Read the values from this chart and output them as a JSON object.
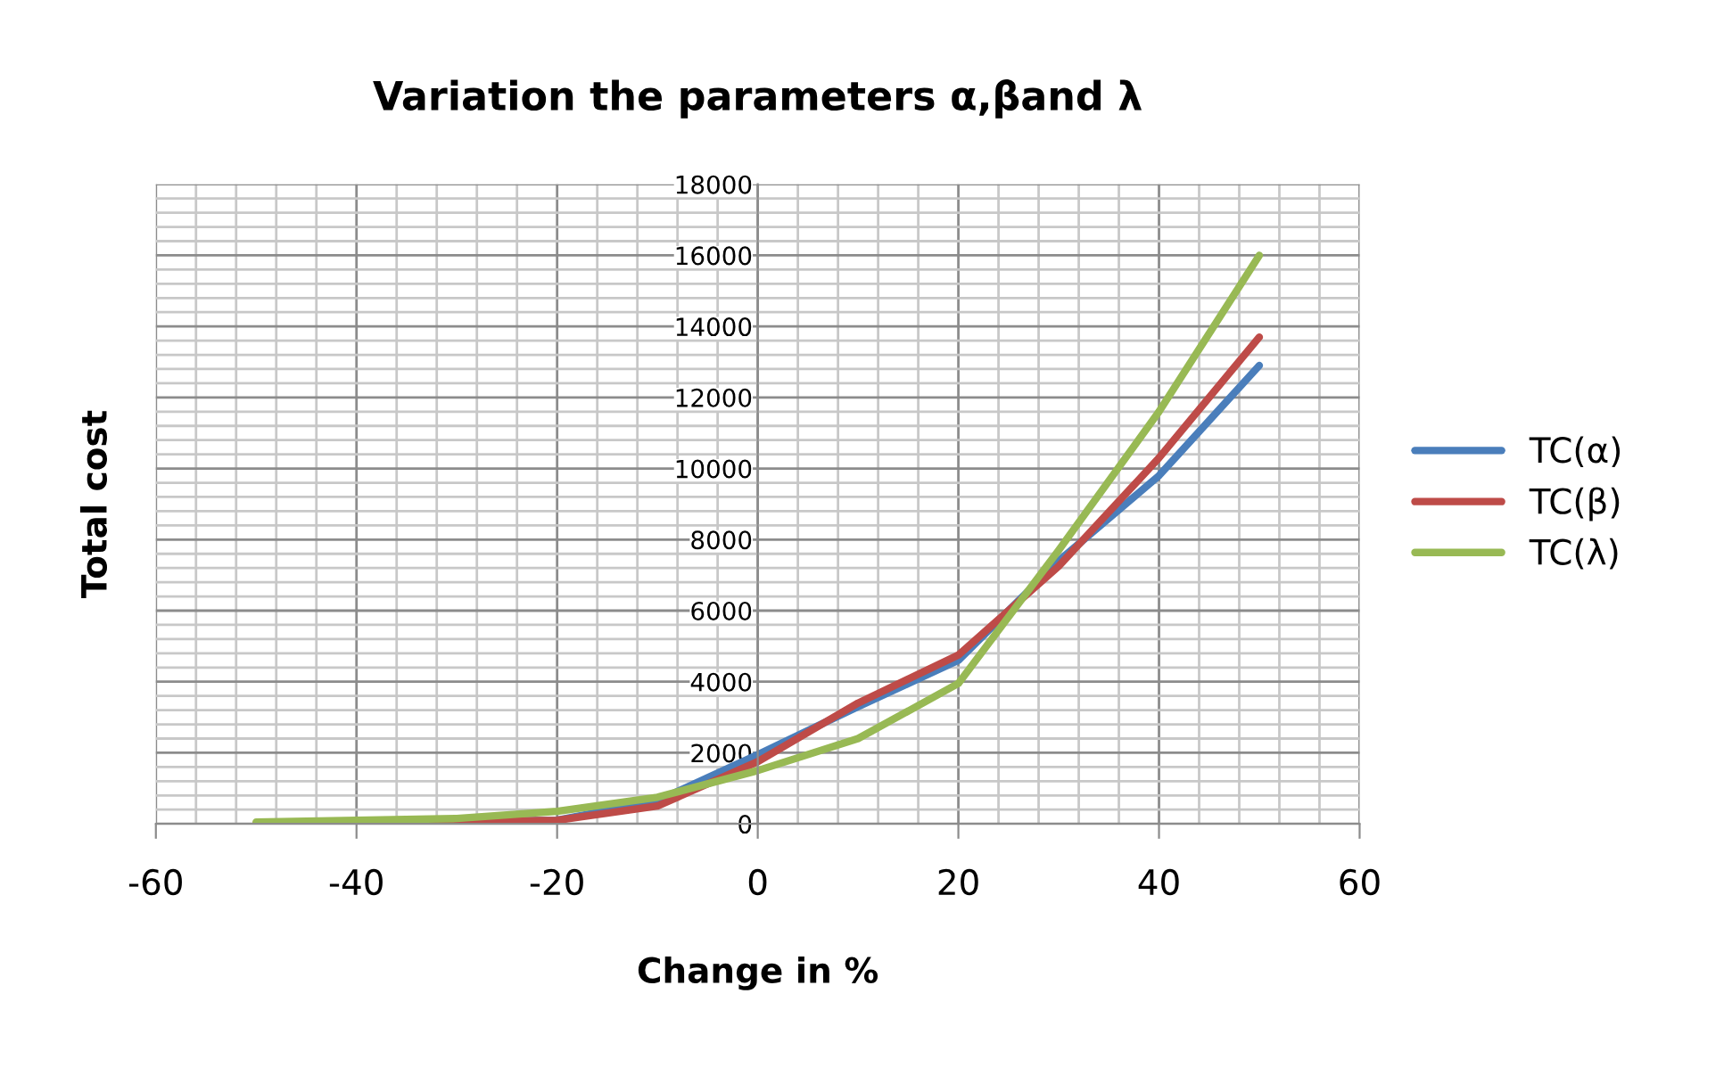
{
  "chart_data": {
    "type": "line",
    "title": "Variation the parameters α,βand λ",
    "xlabel": "Change in %",
    "ylabel": "Total cost",
    "x": [
      -50,
      -40,
      -30,
      -20,
      -10,
      0,
      10,
      20,
      30,
      40,
      50
    ],
    "series": [
      {
        "name": "TC(α)",
        "color": "#4a7ebb",
        "values": [
          null,
          null,
          60,
          100,
          650,
          1950,
          3300,
          4600,
          7400,
          9800,
          12900
        ]
      },
      {
        "name": "TC(β)",
        "color": "#be4b48",
        "values": [
          20,
          40,
          60,
          100,
          500,
          1750,
          3400,
          4750,
          7250,
          10300,
          13700
        ]
      },
      {
        "name": "TC(λ)",
        "color": "#98b954",
        "values": [
          50,
          100,
          150,
          350,
          750,
          1500,
          2400,
          3950,
          7700,
          11600,
          16000
        ]
      }
    ],
    "xlim": [
      -60,
      60
    ],
    "xticks": [
      -60,
      -40,
      -20,
      0,
      20,
      40,
      60
    ],
    "ylim": [
      0,
      18000
    ],
    "yticks": [
      0,
      2000,
      4000,
      6000,
      8000,
      10000,
      12000,
      14000,
      16000,
      18000
    ],
    "grid": true,
    "legend": "right",
    "marker": "none",
    "line_style": "solid"
  }
}
